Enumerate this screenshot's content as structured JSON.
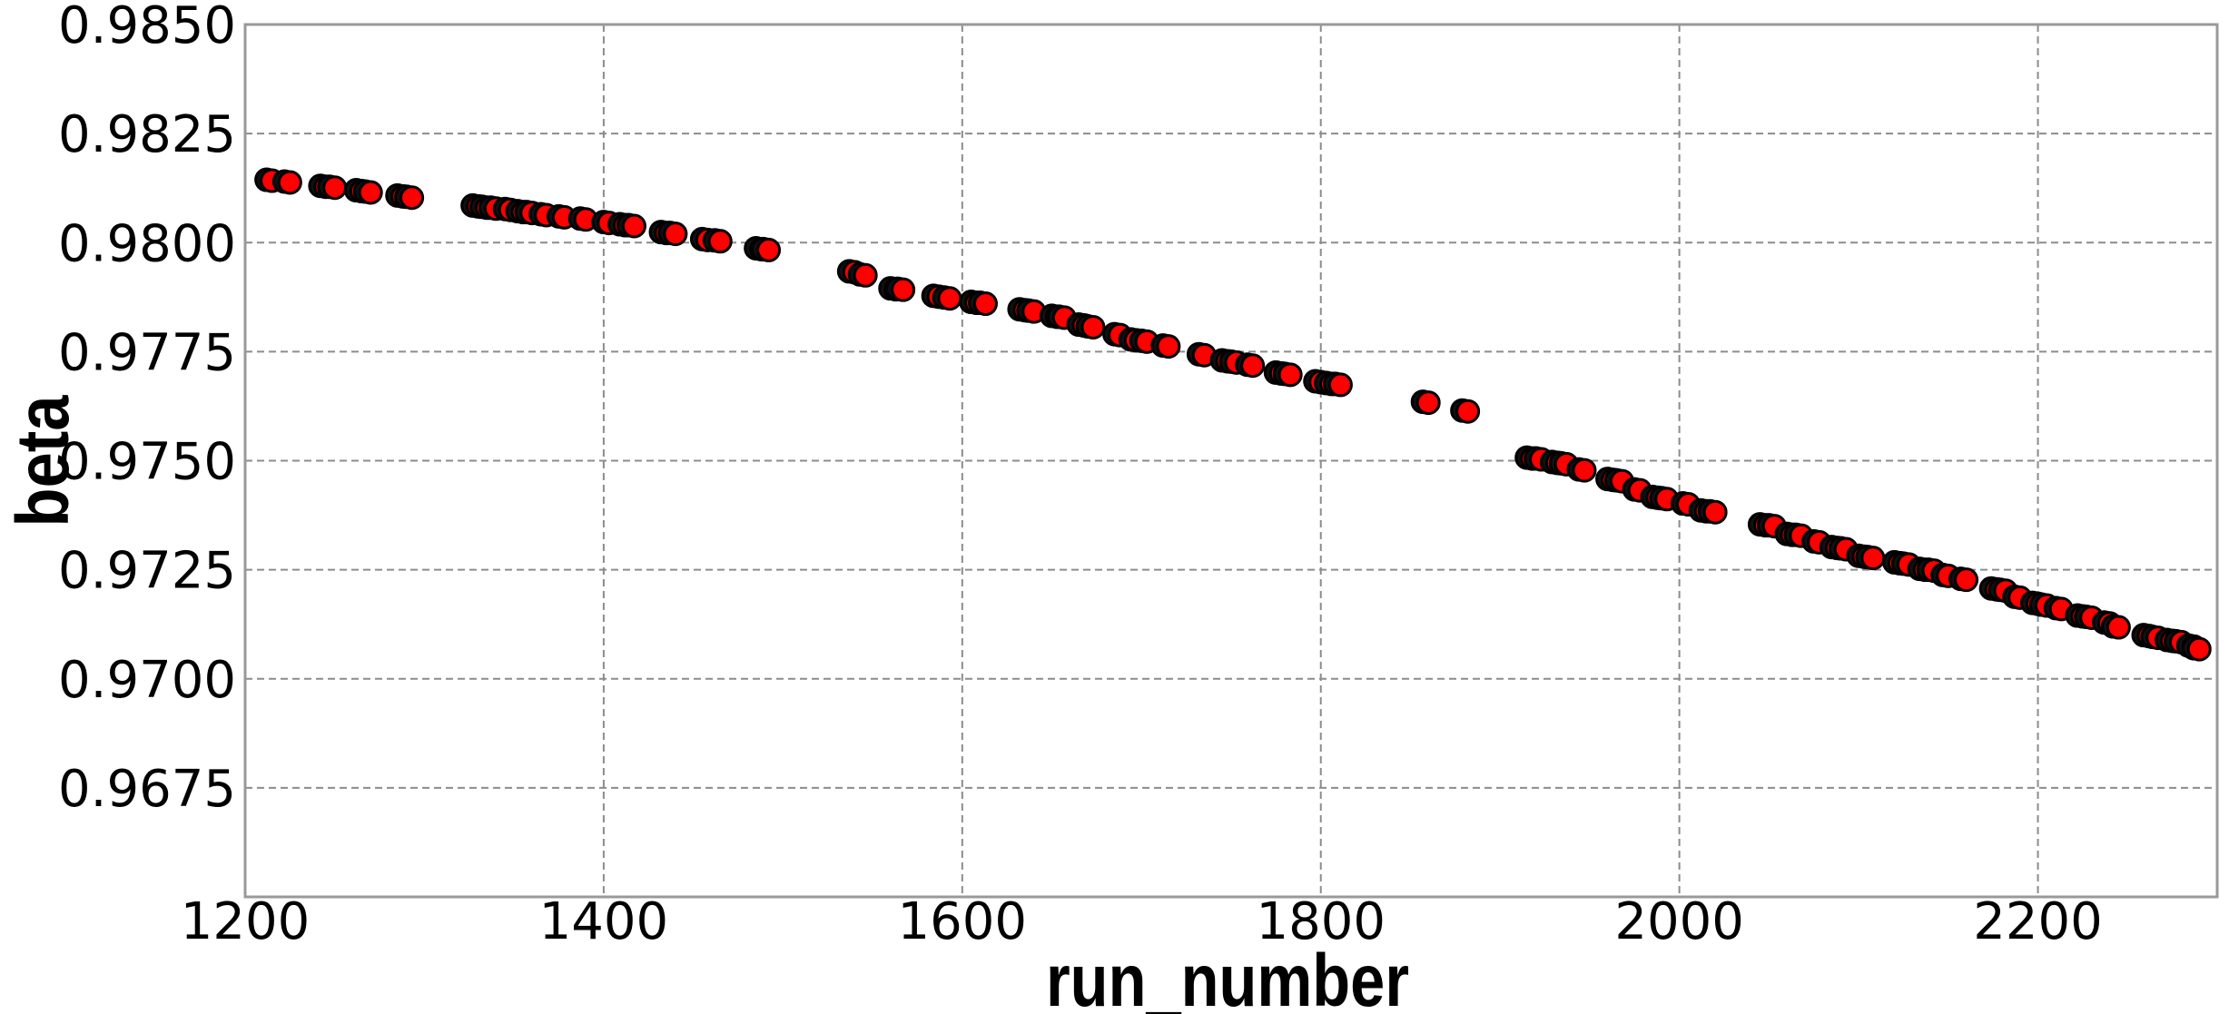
{
  "chart_data": {
    "type": "scatter",
    "xlabel": "run_number",
    "ylabel": "beta",
    "xlim": [
      1200,
      2300
    ],
    "ylim": [
      0.965,
      0.985
    ],
    "x_ticks": [
      1200,
      1400,
      1600,
      1800,
      2000,
      2200
    ],
    "x_tick_labels": [
      "1200",
      "1400",
      "1600",
      "1800",
      "2000",
      "2200"
    ],
    "y_ticks": [
      0.9675,
      0.97,
      0.9725,
      0.975,
      0.9775,
      0.98,
      0.9825,
      0.985
    ],
    "y_tick_labels": [
      "0.9675",
      "0.9700",
      "0.9725",
      "0.9750",
      "0.9775",
      "0.9800",
      "0.9825",
      "0.9850"
    ],
    "grid": true,
    "marker_fill": "#ff0000",
    "marker_edge": "#000000",
    "series": [
      {
        "points": [
          [
            1215,
            0.98142
          ],
          [
            1225,
            0.98138
          ],
          [
            1245,
            0.98128
          ],
          [
            1250,
            0.98126
          ],
          [
            1265,
            0.98118
          ],
          [
            1270,
            0.98115
          ],
          [
            1288,
            0.98106
          ],
          [
            1293,
            0.98103
          ],
          [
            1330,
            0.98083
          ],
          [
            1335,
            0.9808
          ],
          [
            1340,
            0.98078
          ],
          [
            1348,
            0.98075
          ],
          [
            1355,
            0.9807
          ],
          [
            1360,
            0.98068
          ],
          [
            1368,
            0.98063
          ],
          [
            1378,
            0.98058
          ],
          [
            1390,
            0.98053
          ],
          [
            1403,
            0.98045
          ],
          [
            1412,
            0.9804
          ],
          [
            1417,
            0.98038
          ],
          [
            1435,
            0.98022
          ],
          [
            1440,
            0.9802
          ],
          [
            1458,
            0.98006
          ],
          [
            1465,
            0.98003
          ],
          [
            1488,
            0.97985
          ],
          [
            1492,
            0.97983
          ],
          [
            1540,
            0.97932
          ],
          [
            1546,
            0.97925
          ],
          [
            1563,
            0.97893
          ],
          [
            1567,
            0.97892
          ],
          [
            1587,
            0.97876
          ],
          [
            1593,
            0.97872
          ],
          [
            1608,
            0.97862
          ],
          [
            1613,
            0.9786
          ],
          [
            1635,
            0.97845
          ],
          [
            1640,
            0.97842
          ],
          [
            1653,
            0.9783
          ],
          [
            1657,
            0.97828
          ],
          [
            1668,
            0.9781
          ],
          [
            1673,
            0.97806
          ],
          [
            1688,
            0.97788
          ],
          [
            1697,
            0.97776
          ],
          [
            1703,
            0.97773
          ],
          [
            1715,
            0.97762
          ],
          [
            1735,
            0.97742
          ],
          [
            1748,
            0.97728
          ],
          [
            1753,
            0.97725
          ],
          [
            1762,
            0.97718
          ],
          [
            1778,
            0.977
          ],
          [
            1783,
            0.97697
          ],
          [
            1800,
            0.9768
          ],
          [
            1806,
            0.97676
          ],
          [
            1811,
            0.97674
          ],
          [
            1860,
            0.97633
          ],
          [
            1882,
            0.97613
          ],
          [
            1918,
            0.97505
          ],
          [
            1923,
            0.97503
          ],
          [
            1932,
            0.97495
          ],
          [
            1937,
            0.97492
          ],
          [
            1947,
            0.97478
          ],
          [
            1963,
            0.97456
          ],
          [
            1968,
            0.97453
          ],
          [
            1978,
            0.97432
          ],
          [
            1988,
            0.97415
          ],
          [
            1993,
            0.97412
          ],
          [
            2005,
            0.974
          ],
          [
            2015,
            0.97384
          ],
          [
            2020,
            0.97382
          ],
          [
            2048,
            0.97352
          ],
          [
            2053,
            0.9735
          ],
          [
            2063,
            0.9733
          ],
          [
            2068,
            0.97328
          ],
          [
            2078,
            0.97313
          ],
          [
            2088,
            0.973
          ],
          [
            2093,
            0.97297
          ],
          [
            2103,
            0.9728
          ],
          [
            2108,
            0.97277
          ],
          [
            2123,
            0.97265
          ],
          [
            2128,
            0.97262
          ],
          [
            2137,
            0.9725
          ],
          [
            2142,
            0.97248
          ],
          [
            2150,
            0.97236
          ],
          [
            2160,
            0.97227
          ],
          [
            2177,
            0.97205
          ],
          [
            2182,
            0.97202
          ],
          [
            2190,
            0.97186
          ],
          [
            2200,
            0.97172
          ],
          [
            2205,
            0.97168
          ],
          [
            2213,
            0.9716
          ],
          [
            2225,
            0.97143
          ],
          [
            2230,
            0.9714
          ],
          [
            2240,
            0.97127
          ],
          [
            2245,
            0.97118
          ],
          [
            2262,
            0.97098
          ],
          [
            2267,
            0.97094
          ],
          [
            2275,
            0.97087
          ],
          [
            2280,
            0.97084
          ],
          [
            2287,
            0.97074
          ],
          [
            2290,
            0.97068
          ]
        ]
      }
    ]
  }
}
